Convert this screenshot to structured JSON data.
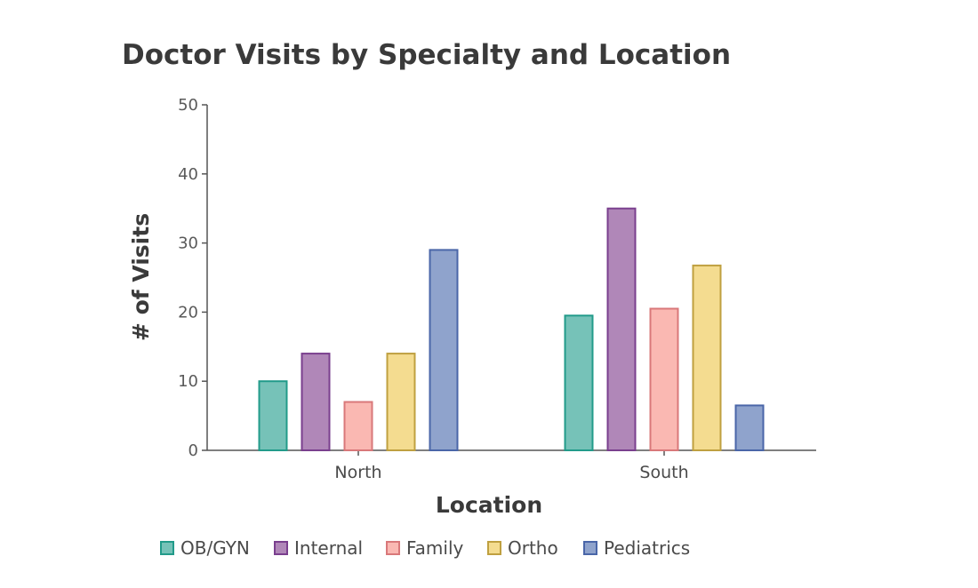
{
  "chart_data": {
    "type": "bar",
    "title": "Doctor Visits by Specialty and Location",
    "xlabel": "Location",
    "ylabel": "# of Visits",
    "ylim": [
      0,
      50
    ],
    "yticks": [
      0,
      10,
      20,
      30,
      40,
      50
    ],
    "grid": false,
    "legend_position": "bottom",
    "categories": [
      "North",
      "South"
    ],
    "series": [
      {
        "name": "OB/GYN",
        "values": [
          10,
          19.5
        ],
        "fill": "#76c2b8",
        "stroke": "#229b8a"
      },
      {
        "name": "Internal",
        "values": [
          14,
          35
        ],
        "fill": "#b087b8",
        "stroke": "#7a3f8e"
      },
      {
        "name": "Family",
        "values": [
          7,
          20.5
        ],
        "fill": "#fab8b2",
        "stroke": "#d9787a"
      },
      {
        "name": "Ortho",
        "values": [
          14,
          26.75
        ],
        "fill": "#f4dc90",
        "stroke": "#bfa040"
      },
      {
        "name": "Pediatrics",
        "values": [
          29,
          6.5
        ],
        "fill": "#8fa3cc",
        "stroke": "#4a66a8"
      }
    ]
  }
}
